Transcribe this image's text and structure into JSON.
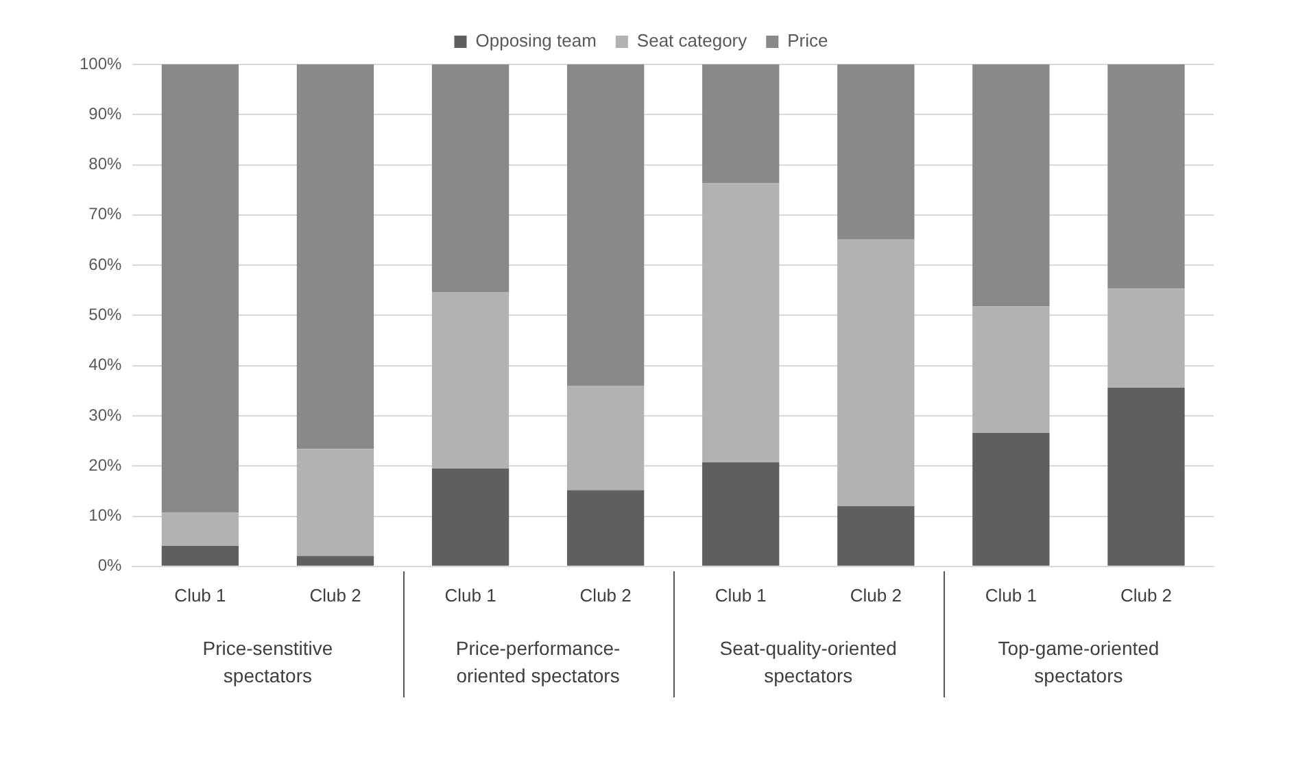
{
  "chart_data": {
    "type": "bar",
    "stacked": true,
    "categories": [
      "Club 1",
      "Club 2",
      "Club 1",
      "Club 2",
      "Club 1",
      "Club 2",
      "Club 1",
      "Club 2"
    ],
    "series": [
      {
        "name": "Opposing team",
        "color": "#5f5f5f",
        "values": [
          4.1,
          2.1,
          19.5,
          15.2,
          20.7,
          12.0,
          26.6,
          35.6
        ]
      },
      {
        "name": "Seat category",
        "color": "#b2b2b2",
        "values": [
          6.6,
          21.3,
          35.1,
          20.8,
          55.7,
          53.1,
          25.2,
          19.7
        ]
      },
      {
        "name": "Price",
        "color": "#898989",
        "values": [
          89.3,
          76.6,
          45.4,
          64.0,
          23.6,
          34.9,
          48.2,
          44.7
        ]
      }
    ],
    "ylim": [
      0,
      100
    ],
    "yticks": [
      {
        "value": 0,
        "label": "0%"
      },
      {
        "value": 10,
        "label": "10%"
      },
      {
        "value": 20,
        "label": "20%"
      },
      {
        "value": 30,
        "label": "30%"
      },
      {
        "value": 40,
        "label": "40%"
      },
      {
        "value": 50,
        "label": "50%"
      },
      {
        "value": 60,
        "label": "60%"
      },
      {
        "value": 70,
        "label": "70%"
      },
      {
        "value": 80,
        "label": "80%"
      },
      {
        "value": 90,
        "label": "90%"
      },
      {
        "value": 100,
        "label": "100%"
      }
    ],
    "grid": "y",
    "legend": "top",
    "annotations": [
      "Price-senstitive spectators",
      "Price-performance-oriented spectators",
      "Seat-quality-oriented spectators",
      "Top-game-oriented spectators"
    ]
  }
}
